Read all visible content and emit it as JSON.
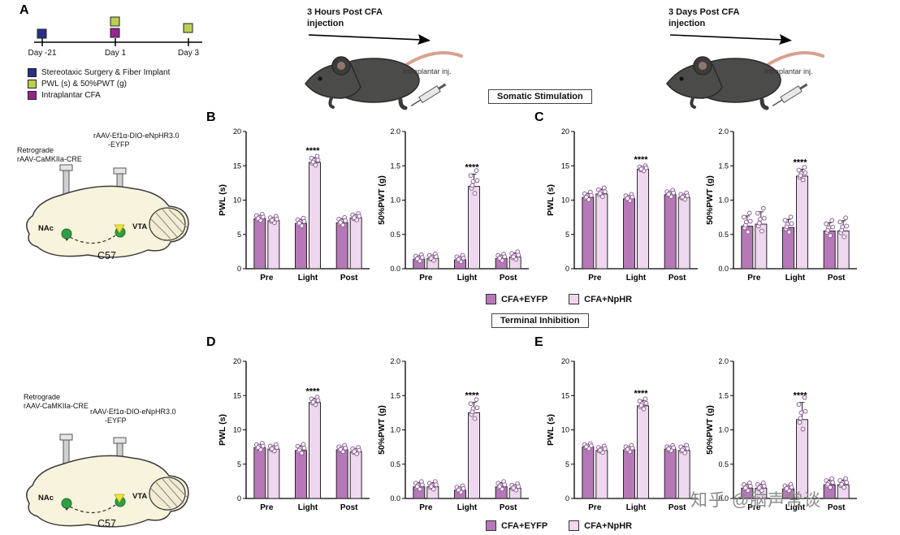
{
  "panels": {
    "a": "A",
    "b": "B",
    "c": "C",
    "d": "D",
    "e": "E"
  },
  "timeline": {
    "days": [
      "Day -21",
      "Day 1",
      "Day 3"
    ],
    "legend": [
      {
        "label": "Stereotaxic Surgery & Fiber Implant",
        "color": "#2b2f86"
      },
      {
        "label": "PWL (s) & 50%PWT (g)",
        "color": "#b9cf54"
      },
      {
        "label": "Intraplantar CFA",
        "color": "#93278f"
      }
    ]
  },
  "mice": {
    "first": {
      "title_line1": "3 Hours Post CFA",
      "title_line2": "injection",
      "note": "Intraplantar inj."
    },
    "second": {
      "title_line1": "3 Days Post CFA",
      "title_line2": "injection",
      "note": "Intraplantar inj."
    }
  },
  "sections": {
    "somatic": "Somatic Stimulation",
    "terminal": "Terminal Inhibition"
  },
  "brain": {
    "retro_line1": "Retrograde",
    "retro_line2": "rAAV-CaMKIIa-CRE",
    "raav_line1": "rAAV-Ef1α-DIO-eNpHR3.0",
    "raav_line2": "-EYFP",
    "nac": "NAc",
    "vta": "VTA",
    "strain": "C57"
  },
  "legend": {
    "eyfp_label": "CFA+EYFP",
    "nphr_label": "CFA+NpHR",
    "eyfp_color": "#b678b6",
    "nphr_color": "#eed7ef"
  },
  "colors": {
    "dot_stroke": "#8d5e96",
    "bar_outline": "#262626",
    "axis": "#000000"
  },
  "watermark": "知乎 @脑声常谈",
  "chart_data": [
    {
      "panel": "B",
      "type": "bar",
      "ylabel": "PWL (s)",
      "ylim": [
        0,
        20
      ],
      "yticks": [
        0,
        5,
        10,
        15,
        20
      ],
      "ytick_labels": [
        "0",
        "5",
        "10",
        "15",
        "20"
      ],
      "categories": [
        "Pre",
        "Light",
        "Post"
      ],
      "series": [
        {
          "name": "CFA+EYFP",
          "color": "#b678b6",
          "values": [
            7.3,
            6.6,
            6.7
          ],
          "errors": [
            0.5,
            0.6,
            0.6
          ]
        },
        {
          "name": "CFA+NpHR",
          "color": "#eed7ef",
          "values": [
            7.0,
            15.5,
            7.4
          ],
          "errors": [
            0.5,
            0.7,
            0.5
          ]
        }
      ],
      "sig": {
        "category_index": 1,
        "label": "****"
      }
    },
    {
      "panel": "B",
      "type": "bar",
      "ylabel": "50%PWT (g)",
      "ylim": [
        0,
        2
      ],
      "yticks": [
        0,
        0.5,
        1,
        1.5,
        2
      ],
      "ytick_labels": [
        "0.0",
        "0.5",
        "1.0",
        "1.5",
        "2.0"
      ],
      "categories": [
        "Pre",
        "Light",
        "Post"
      ],
      "series": [
        {
          "name": "CFA+EYFP",
          "color": "#b678b6",
          "values": [
            0.14,
            0.13,
            0.15
          ],
          "errors": [
            0.05,
            0.05,
            0.05
          ]
        },
        {
          "name": "CFA+NpHR",
          "color": "#eed7ef",
          "values": [
            0.15,
            1.2,
            0.17
          ],
          "errors": [
            0.05,
            0.18,
            0.06
          ]
        }
      ],
      "sig": {
        "category_index": 1,
        "label": "****"
      }
    },
    {
      "panel": "C",
      "type": "bar",
      "ylabel": "PWL (s)",
      "ylim": [
        0,
        20
      ],
      "yticks": [
        0,
        5,
        10,
        15,
        20
      ],
      "ytick_labels": [
        "0",
        "5",
        "10",
        "15",
        "20"
      ],
      "categories": [
        "Pre",
        "Light",
        "Post"
      ],
      "series": [
        {
          "name": "CFA+EYFP",
          "color": "#b678b6",
          "values": [
            10.4,
            10.2,
            10.8
          ],
          "errors": [
            0.6,
            0.5,
            0.5
          ]
        },
        {
          "name": "CFA+NpHR",
          "color": "#eed7ef",
          "values": [
            10.9,
            14.5,
            10.4
          ],
          "errors": [
            0.7,
            0.4,
            0.5
          ]
        }
      ],
      "sig": {
        "category_index": 1,
        "label": "****"
      }
    },
    {
      "panel": "C",
      "type": "bar",
      "ylabel": "50%PWT (g)",
      "ylim": [
        0,
        2
      ],
      "yticks": [
        0,
        0.5,
        1,
        1.5,
        2
      ],
      "ytick_labels": [
        "0.0",
        "0.5",
        "1.0",
        "1.5",
        "2.0"
      ],
      "categories": [
        "Pre",
        "Light",
        "Post"
      ],
      "series": [
        {
          "name": "CFA+EYFP",
          "color": "#b678b6",
          "values": [
            0.62,
            0.6,
            0.55
          ],
          "errors": [
            0.15,
            0.12,
            0.12
          ]
        },
        {
          "name": "CFA+NpHR",
          "color": "#eed7ef",
          "values": [
            0.65,
            1.35,
            0.55
          ],
          "errors": [
            0.18,
            0.1,
            0.15
          ]
        }
      ],
      "sig": {
        "category_index": 1,
        "label": "****"
      }
    },
    {
      "panel": "D",
      "type": "bar",
      "ylabel": "PWL (s)",
      "ylim": [
        0,
        20
      ],
      "yticks": [
        0,
        5,
        10,
        15,
        20
      ],
      "ytick_labels": [
        "0",
        "5",
        "10",
        "15",
        "20"
      ],
      "categories": [
        "Pre",
        "Light",
        "Post"
      ],
      "series": [
        {
          "name": "CFA+EYFP",
          "color": "#b678b6",
          "values": [
            7.4,
            7.0,
            7.1
          ],
          "errors": [
            0.5,
            0.7,
            0.5
          ]
        },
        {
          "name": "CFA+NpHR",
          "color": "#eed7ef",
          "values": [
            7.2,
            14.0,
            6.8
          ],
          "errors": [
            0.5,
            0.6,
            0.5
          ]
        }
      ],
      "sig": {
        "category_index": 1,
        "label": "****"
      }
    },
    {
      "panel": "D",
      "type": "bar",
      "ylabel": "50%PWT (g)",
      "ylim": [
        0,
        2
      ],
      "yticks": [
        0,
        0.5,
        1,
        1.5,
        2
      ],
      "ytick_labels": [
        "0.0",
        "0.5",
        "1.0",
        "1.5",
        "2.0"
      ],
      "categories": [
        "Pre",
        "Light",
        "Post"
      ],
      "series": [
        {
          "name": "CFA+EYFP",
          "color": "#b678b6",
          "values": [
            0.17,
            0.12,
            0.17
          ],
          "errors": [
            0.06,
            0.05,
            0.06
          ]
        },
        {
          "name": "CFA+NpHR",
          "color": "#eed7ef",
          "values": [
            0.17,
            1.25,
            0.15
          ],
          "errors": [
            0.06,
            0.15,
            0.05
          ]
        }
      ],
      "sig": {
        "category_index": 1,
        "label": "****"
      }
    },
    {
      "panel": "E",
      "type": "bar",
      "ylabel": "PWL (s)",
      "ylim": [
        0,
        20
      ],
      "yticks": [
        0,
        5,
        10,
        15,
        20
      ],
      "ytick_labels": [
        "0",
        "5",
        "10",
        "15",
        "20"
      ],
      "categories": [
        "Pre",
        "Light",
        "Post"
      ],
      "series": [
        {
          "name": "CFA+EYFP",
          "color": "#b678b6",
          "values": [
            7.5,
            7.1,
            7.2
          ],
          "errors": [
            0.4,
            0.5,
            0.4
          ]
        },
        {
          "name": "CFA+NpHR",
          "color": "#eed7ef",
          "values": [
            7.0,
            13.5,
            7.0
          ],
          "errors": [
            0.5,
            0.8,
            0.6
          ]
        }
      ],
      "sig": {
        "category_index": 1,
        "label": "****"
      }
    },
    {
      "panel": "E",
      "type": "bar",
      "ylabel": "50%PWT (g)",
      "ylim": [
        0,
        2
      ],
      "yticks": [
        0,
        0.5,
        1,
        1.5,
        2
      ],
      "ytick_labels": [
        "0.0",
        "0.5",
        "1.0",
        "1.5",
        "2.0"
      ],
      "categories": [
        "Pre",
        "Light",
        "Post"
      ],
      "series": [
        {
          "name": "CFA+EYFP",
          "color": "#b678b6",
          "values": [
            0.15,
            0.14,
            0.2
          ],
          "errors": [
            0.06,
            0.05,
            0.07
          ]
        },
        {
          "name": "CFA+NpHR",
          "color": "#eed7ef",
          "values": [
            0.15,
            1.15,
            0.2
          ],
          "errors": [
            0.06,
            0.25,
            0.07
          ]
        }
      ],
      "sig": {
        "category_index": 1,
        "label": "****"
      }
    }
  ]
}
